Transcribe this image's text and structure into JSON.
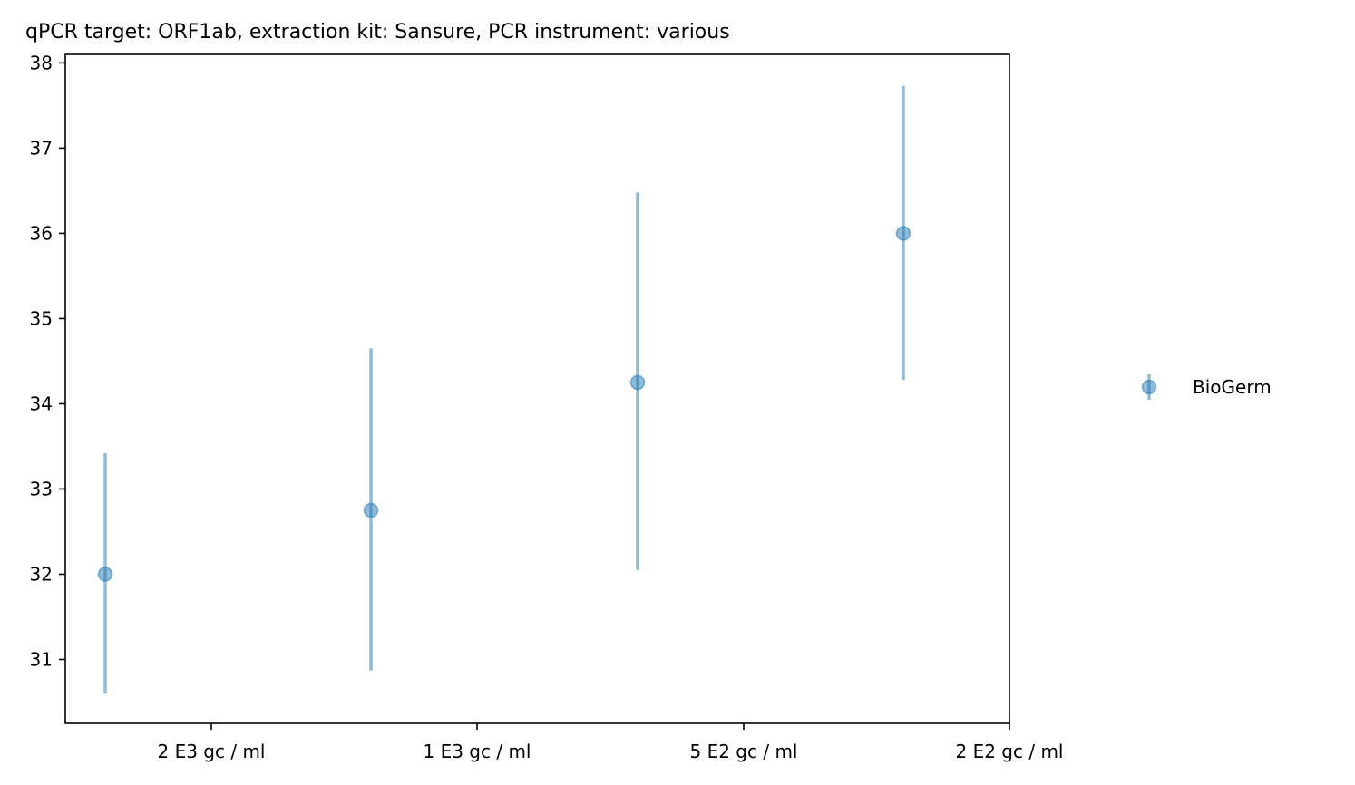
{
  "chart_data": {
    "type": "scatter",
    "title": "qPCR target: ORF1ab, extraction kit: Sansure, PCR instrument: various",
    "xlabel": "",
    "ylabel": "",
    "x_ticks": [
      "2 E3 gc / ml",
      "1 E3 gc / ml",
      "5 E2 gc / ml",
      "2 E2 gc / ml"
    ],
    "y_ticks": [
      31,
      32,
      33,
      34,
      35,
      36,
      37,
      38
    ],
    "ylim": [
      30.25,
      38.1
    ],
    "grid": false,
    "legend_position": "right",
    "series": [
      {
        "name": "BioGerm",
        "color": "#1f77b4",
        "points": [
          {
            "y": 32.0,
            "err_low": 30.6,
            "err_high": 33.42
          },
          {
            "y": 32.75,
            "err_low": 30.87,
            "err_high": 34.65
          },
          {
            "y": 34.25,
            "err_low": 32.05,
            "err_high": 36.48
          },
          {
            "y": 36.0,
            "err_low": 34.28,
            "err_high": 37.73
          }
        ]
      }
    ]
  }
}
